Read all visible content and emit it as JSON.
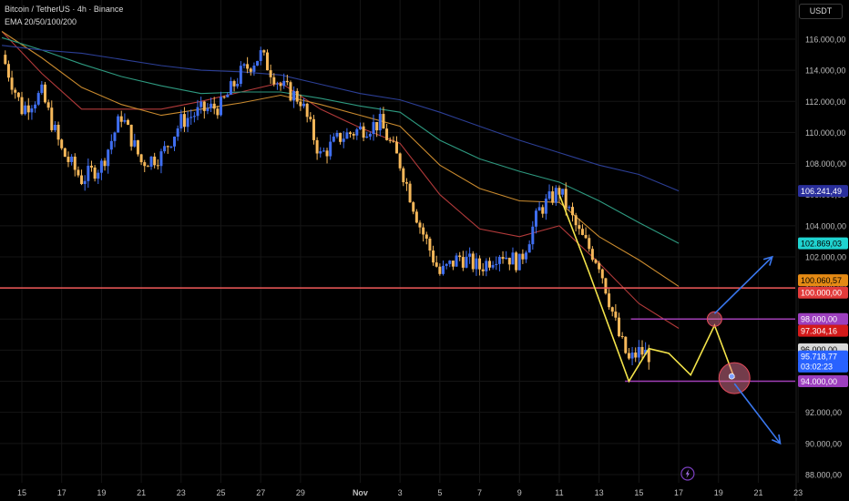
{
  "header": {
    "title": "Bitcoin / TetherUS · 4h · Binance",
    "indicator": "EMA 20/50/100/200"
  },
  "currency_button": "USDT",
  "chart_data": {
    "type": "candlestick",
    "symbol": "Bitcoin / TetherUS",
    "interval": "4h",
    "exchange": "Binance",
    "ylim": [
      87500,
      117600
    ],
    "y_ticks": [
      88000,
      90000,
      92000,
      94000,
      96000,
      98000,
      100000,
      102000,
      104000,
      106000,
      108000,
      110000,
      112000,
      114000,
      116000
    ],
    "y_tick_labels": [
      "88.000,00",
      "90.000,00",
      "92.000,00",
      "94.000,00",
      "96.000,00",
      "98.000,00",
      "100.000,00",
      "102.000,00",
      "104.000,00",
      "106.000,00",
      "108.000,00",
      "110.000,00",
      "112.000,00",
      "114.000,00",
      "116.000,00"
    ],
    "x_ticks": [
      {
        "label": "15",
        "day": 15
      },
      {
        "label": "17",
        "day": 17
      },
      {
        "label": "19",
        "day": 19
      },
      {
        "label": "21",
        "day": 21
      },
      {
        "label": "23",
        "day": 23
      },
      {
        "label": "25",
        "day": 25
      },
      {
        "label": "27",
        "day": 27
      },
      {
        "label": "29",
        "day": 29
      },
      {
        "label": "Nov",
        "day": 32
      },
      {
        "label": "3",
        "day": 34
      },
      {
        "label": "5",
        "day": 36
      },
      {
        "label": "7",
        "day": 38
      },
      {
        "label": "9",
        "day": 40
      },
      {
        "label": "11",
        "day": 42
      },
      {
        "label": "13",
        "day": 44
      },
      {
        "label": "15",
        "day": 46
      },
      {
        "label": "17",
        "day": 48
      },
      {
        "label": "19",
        "day": 50
      },
      {
        "label": "21",
        "day": 52
      },
      {
        "label": "23",
        "day": 54
      }
    ],
    "daily_closes": [
      {
        "day": 14,
        "close": 115000
      },
      {
        "day": 15,
        "close": 111500
      },
      {
        "day": 16,
        "close": 112500
      },
      {
        "day": 17,
        "close": 108800
      },
      {
        "day": 18,
        "close": 107000
      },
      {
        "day": 19,
        "close": 107900
      },
      {
        "day": 20,
        "close": 111100
      },
      {
        "day": 21,
        "close": 108100
      },
      {
        "day": 22,
        "close": 108500
      },
      {
        "day": 23,
        "close": 110700
      },
      {
        "day": 24,
        "close": 111400
      },
      {
        "day": 25,
        "close": 111700
      },
      {
        "day": 26,
        "close": 113800
      },
      {
        "day": 27,
        "close": 115000
      },
      {
        "day": 28,
        "close": 113000
      },
      {
        "day": 29,
        "close": 112100
      },
      {
        "day": 30,
        "close": 108500
      },
      {
        "day": 31,
        "close": 109700
      },
      {
        "day": 32,
        "close": 110200
      },
      {
        "day": 33,
        "close": 110600
      },
      {
        "day": 34,
        "close": 108000
      },
      {
        "day": 35,
        "close": 104000
      },
      {
        "day": 36,
        "close": 100900
      },
      {
        "day": 37,
        "close": 102000
      },
      {
        "day": 38,
        "close": 101300
      },
      {
        "day": 39,
        "close": 102300
      },
      {
        "day": 40,
        "close": 101600
      },
      {
        "day": 41,
        "close": 105000
      },
      {
        "day": 42,
        "close": 106300
      },
      {
        "day": 43,
        "close": 103500
      },
      {
        "day": 44,
        "close": 101600
      },
      {
        "day": 45,
        "close": 96900
      },
      {
        "day": 45.5,
        "close": 95300
      },
      {
        "day": 46,
        "close": 95900
      },
      {
        "day": 46.5,
        "close": 95718
      }
    ],
    "ema_lines": [
      {
        "name": "EMA 20",
        "color": "#b23a3a",
        "points": [
          [
            14,
            116500
          ],
          [
            16,
            113800
          ],
          [
            18,
            111500
          ],
          [
            20,
            111500
          ],
          [
            22,
            111500
          ],
          [
            24,
            112000
          ],
          [
            26,
            112600
          ],
          [
            28,
            113200
          ],
          [
            30,
            111500
          ],
          [
            32,
            110300
          ],
          [
            34,
            109300
          ],
          [
            36,
            106000
          ],
          [
            38,
            103800
          ],
          [
            40,
            103300
          ],
          [
            42,
            104000
          ],
          [
            44,
            101600
          ],
          [
            46,
            99000
          ],
          [
            48,
            97400
          ]
        ]
      },
      {
        "name": "EMA 50",
        "color": "#c98a2e",
        "points": [
          [
            14,
            116500
          ],
          [
            16,
            114800
          ],
          [
            18,
            112900
          ],
          [
            20,
            111800
          ],
          [
            22,
            111100
          ],
          [
            24,
            111500
          ],
          [
            26,
            111900
          ],
          [
            28,
            112400
          ],
          [
            30,
            111800
          ],
          [
            32,
            111100
          ],
          [
            34,
            110400
          ],
          [
            36,
            107900
          ],
          [
            38,
            106400
          ],
          [
            40,
            105600
          ],
          [
            42,
            105500
          ],
          [
            44,
            103300
          ],
          [
            46,
            101800
          ],
          [
            48,
            100100
          ]
        ]
      },
      {
        "name": "EMA 100",
        "color": "#2e9a80",
        "points": [
          [
            14,
            116100
          ],
          [
            16,
            115300
          ],
          [
            18,
            114400
          ],
          [
            20,
            113600
          ],
          [
            22,
            113000
          ],
          [
            24,
            112500
          ],
          [
            26,
            112600
          ],
          [
            28,
            112600
          ],
          [
            30,
            112200
          ],
          [
            32,
            111700
          ],
          [
            34,
            111300
          ],
          [
            36,
            109500
          ],
          [
            38,
            108300
          ],
          [
            40,
            107500
          ],
          [
            42,
            106800
          ],
          [
            44,
            105600
          ],
          [
            46,
            104200
          ],
          [
            48,
            102869
          ]
        ]
      },
      {
        "name": "EMA 200",
        "color": "#2c3f96",
        "points": [
          [
            14,
            115600
          ],
          [
            16,
            115300
          ],
          [
            18,
            115100
          ],
          [
            20,
            114700
          ],
          [
            22,
            114300
          ],
          [
            24,
            114000
          ],
          [
            26,
            113900
          ],
          [
            28,
            113700
          ],
          [
            30,
            113100
          ],
          [
            32,
            112500
          ],
          [
            34,
            112100
          ],
          [
            36,
            111300
          ],
          [
            38,
            110400
          ],
          [
            40,
            109500
          ],
          [
            42,
            108700
          ],
          [
            44,
            107900
          ],
          [
            46,
            107300
          ],
          [
            48,
            106241
          ]
        ]
      }
    ],
    "horizontal_lines": [
      {
        "price": 100000,
        "color": "#f25a5a"
      },
      {
        "price": 98000,
        "color": "#a03fb5"
      },
      {
        "price": 94000,
        "color": "#a03fb5"
      }
    ],
    "projection_path": [
      [
        42,
        106000
      ],
      [
        43.5,
        101000
      ],
      [
        45.5,
        94000
      ],
      [
        46.5,
        96100
      ],
      [
        47.5,
        95800
      ],
      [
        48.6,
        94400
      ],
      [
        49.8,
        97600
      ],
      [
        50.8,
        94200
      ]
    ],
    "price_labels": [
      {
        "text": "106.241,49",
        "price": 106241,
        "bg": "#2a2f9c",
        "fg": "#ffffff"
      },
      {
        "text": "102.869,03",
        "price": 102869,
        "bg": "#1fd3d0",
        "fg": "#000000"
      },
      {
        "text": "100.060,57",
        "price": 100500,
        "bg": "#e58a14",
        "fg": "#000000"
      },
      {
        "text": "100.000,00",
        "price": 99700,
        "bg": "#e23b3b",
        "fg": "#ffffff"
      },
      {
        "text": "98.000,00",
        "price": 98000,
        "bg": "#9d3fbf",
        "fg": "#ffffff"
      },
      {
        "text": "97.304,16",
        "price": 97250,
        "bg": "#d41a1a",
        "fg": "#ffffff"
      },
      {
        "text": "96.000,00",
        "price": 96050,
        "bg": "#d9d9d9",
        "fg": "#000000"
      },
      {
        "text": "95.718,77",
        "price": 95600,
        "bg": "#2962ff",
        "fg": "#ffffff"
      },
      {
        "text": "03:02:23",
        "price": 94950,
        "bg": "#2962ff",
        "fg": "#ffffff"
      },
      {
        "text": "94.000,00",
        "price": 94000,
        "bg": "#9d3fbf",
        "fg": "#ffffff"
      }
    ]
  },
  "colors": {
    "bull": "#3f6ef0",
    "bear": "#f6b85a",
    "projection": "#f3e34a",
    "arrows": "#3a78f0",
    "grid": "#151515",
    "axis_text": "#bdbdbd"
  }
}
